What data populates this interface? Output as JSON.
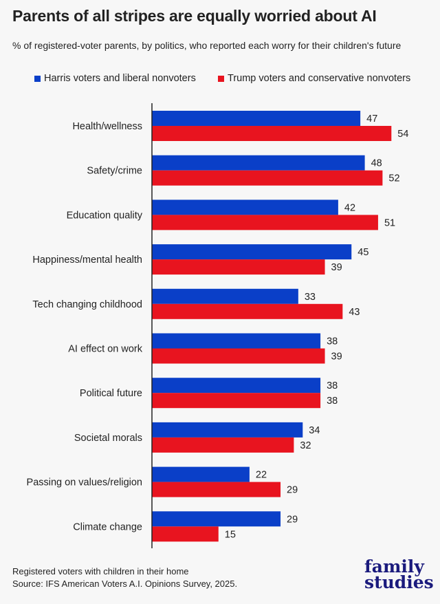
{
  "title": "Parents of all stripes are equally worried about AI",
  "subtitle": "% of registered-voter parents, by politics, who reported each worry for their children's future",
  "notes": [
    "Registered voters with children in their home",
    "Source: IFS American Voters A.I. Opinions Survey, 2025."
  ],
  "logo": [
    "family",
    "studies"
  ],
  "colors": {
    "harris": "#0a3fc8",
    "trump": "#e8141f",
    "logo": "#1b1b7d"
  },
  "chart_data": {
    "type": "bar",
    "orientation": "horizontal",
    "legend_placement": "top",
    "grid": false,
    "xlim": [
      0,
      60
    ],
    "categories": [
      "Health/wellness",
      "Safety/crime",
      "Education quality",
      "Happiness/mental health",
      "Tech changing childhood",
      "AI effect on work",
      "Political future",
      "Societal morals",
      "Passing on values/religion",
      "Climate change"
    ],
    "series": [
      {
        "name": "Harris voters and liberal nonvoters",
        "color": "#0a3fc8",
        "values": [
          47,
          48,
          42,
          45,
          33,
          38,
          38,
          34,
          22,
          29
        ]
      },
      {
        "name": "Trump voters and conservative nonvoters",
        "color": "#e8141f",
        "values": [
          54,
          52,
          51,
          39,
          43,
          39,
          38,
          32,
          29,
          15
        ]
      }
    ]
  }
}
